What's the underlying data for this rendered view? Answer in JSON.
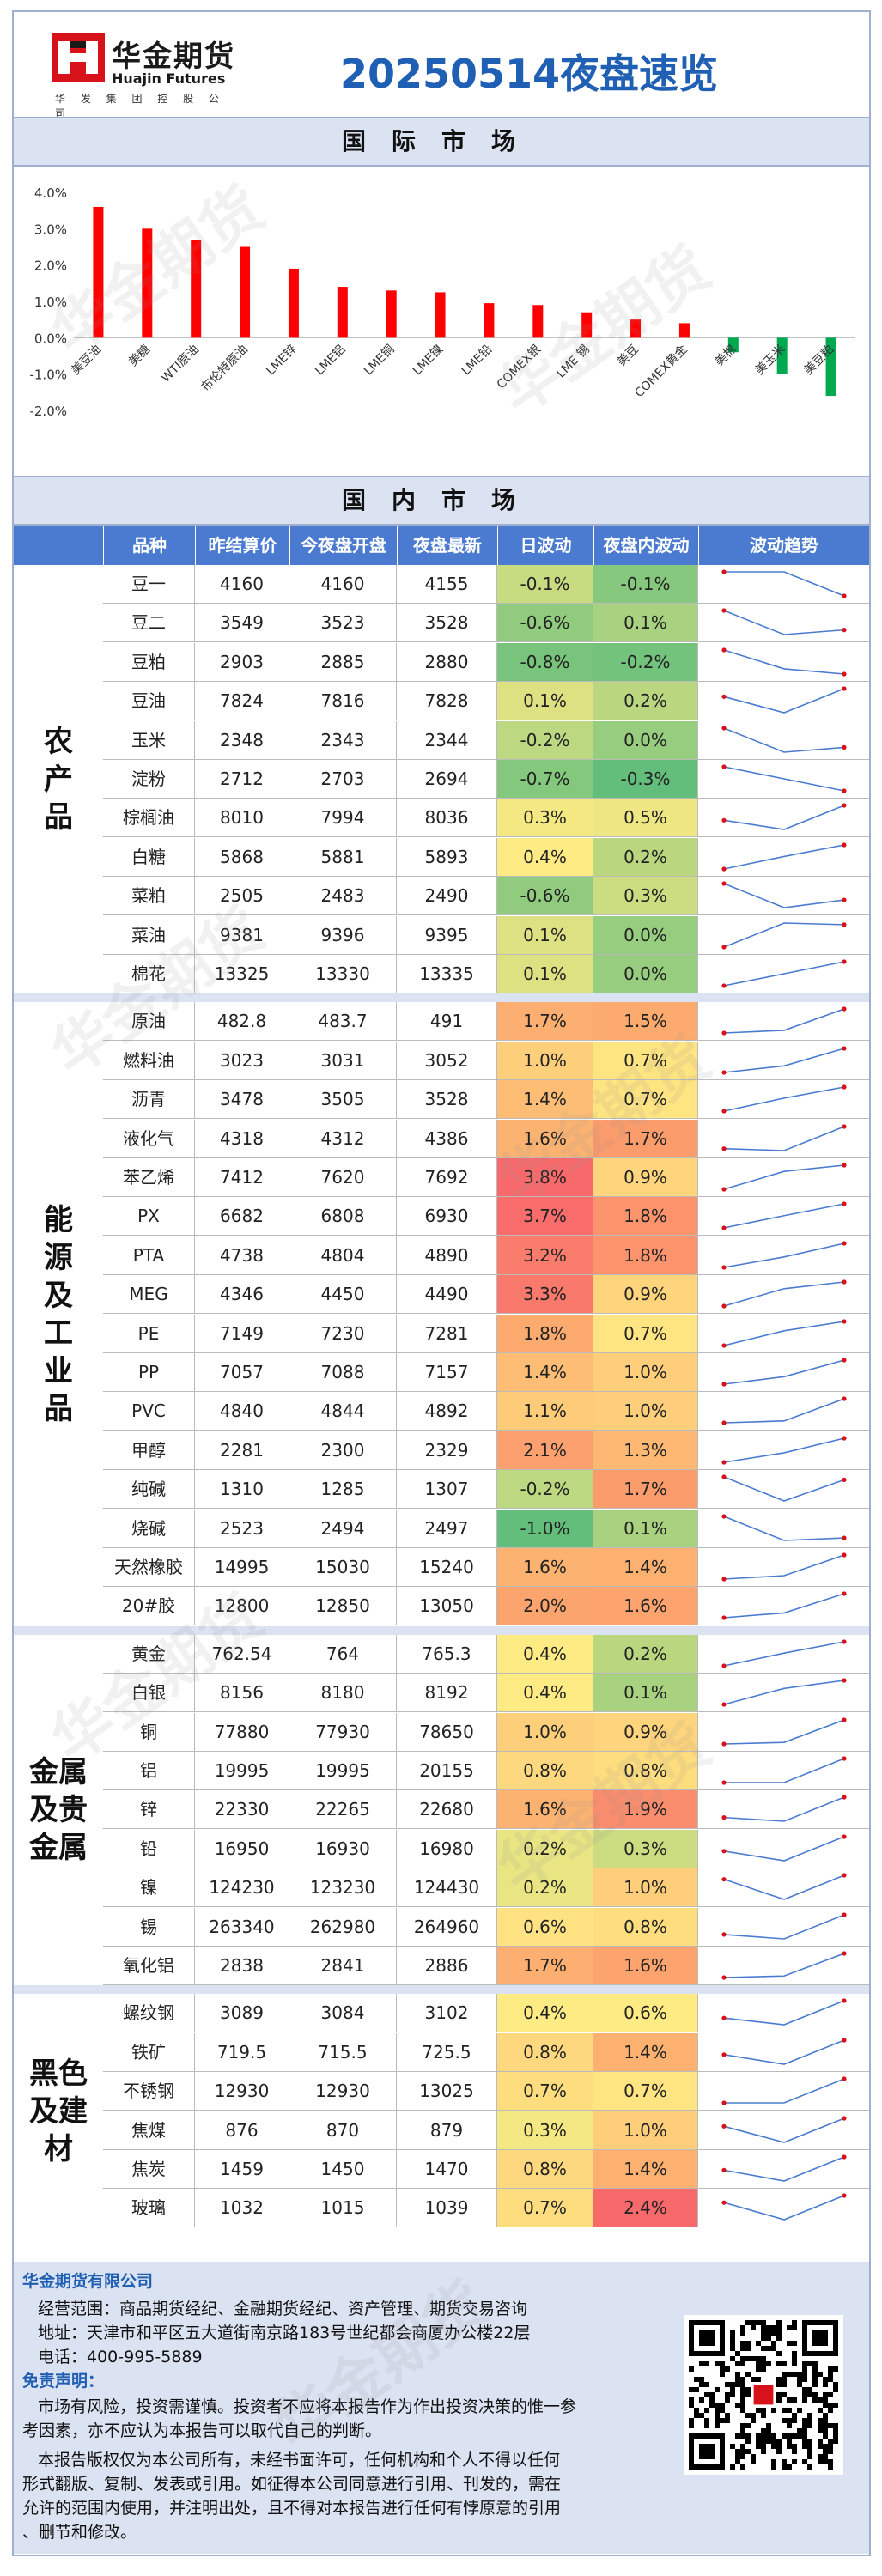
{
  "header": {
    "logo_cn": "华金期货",
    "logo_en": "Huajin Futures",
    "logo_sub": "华 发 集 团 控 股 公 司",
    "title": "20250514夜盘速览"
  },
  "sections": {
    "international": "国际市场",
    "domestic": "国内市场"
  },
  "chart_data": {
    "type": "bar",
    "title": "",
    "categories": [
      "美豆油",
      "美糖",
      "WTI原油",
      "布伦特原油",
      "LME锌",
      "LME铝",
      "LME铜",
      "LME镍",
      "LME铅",
      "COMEX银",
      "LME 锡",
      "美豆",
      "COMEX黄金",
      "美棉",
      "美玉米",
      "美豆粕"
    ],
    "values": [
      3.6,
      3.0,
      2.7,
      2.5,
      1.9,
      1.4,
      1.3,
      1.25,
      0.95,
      0.9,
      0.7,
      0.5,
      0.4,
      -0.4,
      -1.0,
      -1.6
    ],
    "ylim": [
      -2.0,
      4.0
    ],
    "yticks": [
      "4.0%",
      "3.0%",
      "2.0%",
      "1.0%",
      "0.0%",
      "-1.0%",
      "-2.0%"
    ],
    "colors": {
      "positive": "#ff0000",
      "negative": "#00a84f"
    }
  },
  "table": {
    "headers": [
      "品种",
      "昨结算价",
      "今夜盘开盘",
      "夜盘最新",
      "日波动",
      "夜盘内波动",
      "波动趋势"
    ],
    "groups": [
      {
        "label": "农产品",
        "rows": [
          {
            "name": "豆一",
            "prev": "4160",
            "open": "4160",
            "last": "4155",
            "day": "-0.1%",
            "night": "-0.1%",
            "day_v": -0.1,
            "night_v": -0.1,
            "trend": [
              4160,
              4160,
              4155
            ]
          },
          {
            "name": "豆二",
            "prev": "3549",
            "open": "3523",
            "last": "3528",
            "day": "-0.6%",
            "night": "0.1%",
            "day_v": -0.6,
            "night_v": 0.1,
            "trend": [
              3549,
              3523,
              3528
            ]
          },
          {
            "name": "豆粕",
            "prev": "2903",
            "open": "2885",
            "last": "2880",
            "day": "-0.8%",
            "night": "-0.2%",
            "day_v": -0.8,
            "night_v": -0.2,
            "trend": [
              2903,
              2885,
              2880
            ]
          },
          {
            "name": "豆油",
            "prev": "7824",
            "open": "7816",
            "last": "7828",
            "day": "0.1%",
            "night": "0.2%",
            "day_v": 0.1,
            "night_v": 0.2,
            "trend": [
              7824,
              7816,
              7828
            ]
          },
          {
            "name": "玉米",
            "prev": "2348",
            "open": "2343",
            "last": "2344",
            "day": "-0.2%",
            "night": "0.0%",
            "day_v": -0.2,
            "night_v": 0.0,
            "trend": [
              2348,
              2343,
              2344
            ]
          },
          {
            "name": "淀粉",
            "prev": "2712",
            "open": "2703",
            "last": "2694",
            "day": "-0.7%",
            "night": "-0.3%",
            "day_v": -0.7,
            "night_v": -0.3,
            "trend": [
              2712,
              2703,
              2694
            ]
          },
          {
            "name": "棕榈油",
            "prev": "8010",
            "open": "7994",
            "last": "8036",
            "day": "0.3%",
            "night": "0.5%",
            "day_v": 0.3,
            "night_v": 0.5,
            "trend": [
              8010,
              7994,
              8036
            ]
          },
          {
            "name": "白糖",
            "prev": "5868",
            "open": "5881",
            "last": "5893",
            "day": "0.4%",
            "night": "0.2%",
            "day_v": 0.4,
            "night_v": 0.2,
            "trend": [
              5868,
              5881,
              5893
            ]
          },
          {
            "name": "菜粕",
            "prev": "2505",
            "open": "2483",
            "last": "2490",
            "day": "-0.6%",
            "night": "0.3%",
            "day_v": -0.6,
            "night_v": 0.3,
            "trend": [
              2505,
              2483,
              2490
            ]
          },
          {
            "name": "菜油",
            "prev": "9381",
            "open": "9396",
            "last": "9395",
            "day": "0.1%",
            "night": "0.0%",
            "day_v": 0.1,
            "night_v": 0.0,
            "trend": [
              9381,
              9396,
              9395
            ]
          },
          {
            "name": "棉花",
            "prev": "13325",
            "open": "13330",
            "last": "13335",
            "day": "0.1%",
            "night": "0.0%",
            "day_v": 0.1,
            "night_v": 0.0,
            "trend": [
              13325,
              13330,
              13335
            ]
          }
        ]
      },
      {
        "label": "能源及工业品",
        "rows": [
          {
            "name": "原油",
            "prev": "482.8",
            "open": "483.7",
            "last": "491",
            "day": "1.7%",
            "night": "1.5%",
            "day_v": 1.7,
            "night_v": 1.5,
            "trend": [
              482.8,
              483.7,
              491
            ]
          },
          {
            "name": "燃料油",
            "prev": "3023",
            "open": "3031",
            "last": "3052",
            "day": "1.0%",
            "night": "0.7%",
            "day_v": 1.0,
            "night_v": 0.7,
            "trend": [
              3023,
              3031,
              3052
            ]
          },
          {
            "name": "沥青",
            "prev": "3478",
            "open": "3505",
            "last": "3528",
            "day": "1.4%",
            "night": "0.7%",
            "day_v": 1.4,
            "night_v": 0.7,
            "trend": [
              3478,
              3505,
              3528
            ]
          },
          {
            "name": "液化气",
            "prev": "4318",
            "open": "4312",
            "last": "4386",
            "day": "1.6%",
            "night": "1.7%",
            "day_v": 1.6,
            "night_v": 1.7,
            "trend": [
              4318,
              4312,
              4386
            ]
          },
          {
            "name": "苯乙烯",
            "prev": "7412",
            "open": "7620",
            "last": "7692",
            "day": "3.8%",
            "night": "0.9%",
            "day_v": 3.8,
            "night_v": 0.9,
            "trend": [
              7412,
              7620,
              7692
            ]
          },
          {
            "name": "PX",
            "prev": "6682",
            "open": "6808",
            "last": "6930",
            "day": "3.7%",
            "night": "1.8%",
            "day_v": 3.7,
            "night_v": 1.8,
            "trend": [
              6682,
              6808,
              6930
            ]
          },
          {
            "name": "PTA",
            "prev": "4738",
            "open": "4804",
            "last": "4890",
            "day": "3.2%",
            "night": "1.8%",
            "day_v": 3.2,
            "night_v": 1.8,
            "trend": [
              4738,
              4804,
              4890
            ]
          },
          {
            "name": "MEG",
            "prev": "4346",
            "open": "4450",
            "last": "4490",
            "day": "3.3%",
            "night": "0.9%",
            "day_v": 3.3,
            "night_v": 0.9,
            "trend": [
              4346,
              4450,
              4490
            ]
          },
          {
            "name": "PE",
            "prev": "7149",
            "open": "7230",
            "last": "7281",
            "day": "1.8%",
            "night": "0.7%",
            "day_v": 1.8,
            "night_v": 0.7,
            "trend": [
              7149,
              7230,
              7281
            ]
          },
          {
            "name": "PP",
            "prev": "7057",
            "open": "7088",
            "last": "7157",
            "day": "1.4%",
            "night": "1.0%",
            "day_v": 1.4,
            "night_v": 1.0,
            "trend": [
              7057,
              7088,
              7157
            ]
          },
          {
            "name": "PVC",
            "prev": "4840",
            "open": "4844",
            "last": "4892",
            "day": "1.1%",
            "night": "1.0%",
            "day_v": 1.1,
            "night_v": 1.0,
            "trend": [
              4840,
              4844,
              4892
            ]
          },
          {
            "name": "甲醇",
            "prev": "2281",
            "open": "2300",
            "last": "2329",
            "day": "2.1%",
            "night": "1.3%",
            "day_v": 2.1,
            "night_v": 1.3,
            "trend": [
              2281,
              2300,
              2329
            ]
          },
          {
            "name": "纯碱",
            "prev": "1310",
            "open": "1285",
            "last": "1307",
            "day": "-0.2%",
            "night": "1.7%",
            "day_v": -0.2,
            "night_v": 1.7,
            "trend": [
              1310,
              1285,
              1307
            ]
          },
          {
            "name": "烧碱",
            "prev": "2523",
            "open": "2494",
            "last": "2497",
            "day": "-1.0%",
            "night": "0.1%",
            "day_v": -1.0,
            "night_v": 0.1,
            "trend": [
              2523,
              2494,
              2497
            ]
          },
          {
            "name": "天然橡胶",
            "prev": "14995",
            "open": "15030",
            "last": "15240",
            "day": "1.6%",
            "night": "1.4%",
            "day_v": 1.6,
            "night_v": 1.4,
            "trend": [
              14995,
              15030,
              15240
            ]
          },
          {
            "name": "20#胶",
            "prev": "12800",
            "open": "12850",
            "last": "13050",
            "day": "2.0%",
            "night": "1.6%",
            "day_v": 2.0,
            "night_v": 1.6,
            "trend": [
              12800,
              12850,
              13050
            ]
          }
        ]
      },
      {
        "label": "金属及贵金属",
        "rows": [
          {
            "name": "黄金",
            "prev": "762.54",
            "open": "764",
            "last": "765.3",
            "day": "0.4%",
            "night": "0.2%",
            "day_v": 0.4,
            "night_v": 0.2,
            "trend": [
              762.54,
              764,
              765.3
            ]
          },
          {
            "name": "白银",
            "prev": "8156",
            "open": "8180",
            "last": "8192",
            "day": "0.4%",
            "night": "0.1%",
            "day_v": 0.4,
            "night_v": 0.1,
            "trend": [
              8156,
              8180,
              8192
            ]
          },
          {
            "name": "铜",
            "prev": "77880",
            "open": "77930",
            "last": "78650",
            "day": "1.0%",
            "night": "0.9%",
            "day_v": 1.0,
            "night_v": 0.9,
            "trend": [
              77880,
              77930,
              78650
            ]
          },
          {
            "name": "铝",
            "prev": "19995",
            "open": "19995",
            "last": "20155",
            "day": "0.8%",
            "night": "0.8%",
            "day_v": 0.8,
            "night_v": 0.8,
            "trend": [
              19995,
              19995,
              20155
            ]
          },
          {
            "name": "锌",
            "prev": "22330",
            "open": "22265",
            "last": "22680",
            "day": "1.6%",
            "night": "1.9%",
            "day_v": 1.6,
            "night_v": 1.9,
            "trend": [
              22330,
              22265,
              22680
            ]
          },
          {
            "name": "铅",
            "prev": "16950",
            "open": "16930",
            "last": "16980",
            "day": "0.2%",
            "night": "0.3%",
            "day_v": 0.2,
            "night_v": 0.3,
            "trend": [
              16950,
              16930,
              16980
            ]
          },
          {
            "name": "镍",
            "prev": "124230",
            "open": "123230",
            "last": "124430",
            "day": "0.2%",
            "night": "1.0%",
            "day_v": 0.2,
            "night_v": 1.0,
            "trend": [
              124230,
              123230,
              124430
            ]
          },
          {
            "name": "锡",
            "prev": "263340",
            "open": "262980",
            "last": "264960",
            "day": "0.6%",
            "night": "0.8%",
            "day_v": 0.6,
            "night_v": 0.8,
            "trend": [
              263340,
              262980,
              264960
            ]
          },
          {
            "name": "氧化铝",
            "prev": "2838",
            "open": "2841",
            "last": "2886",
            "day": "1.7%",
            "night": "1.6%",
            "day_v": 1.7,
            "night_v": 1.6,
            "trend": [
              2838,
              2841,
              2886
            ]
          }
        ]
      },
      {
        "label": "黑色及建材",
        "rows": [
          {
            "name": "螺纹钢",
            "prev": "3089",
            "open": "3084",
            "last": "3102",
            "day": "0.4%",
            "night": "0.6%",
            "day_v": 0.4,
            "night_v": 0.6,
            "trend": [
              3089,
              3084,
              3102
            ]
          },
          {
            "name": "铁矿",
            "prev": "719.5",
            "open": "715.5",
            "last": "725.5",
            "day": "0.8%",
            "night": "1.4%",
            "day_v": 0.8,
            "night_v": 1.4,
            "trend": [
              719.5,
              715.5,
              725.5
            ]
          },
          {
            "name": "不锈钢",
            "prev": "12930",
            "open": "12930",
            "last": "13025",
            "day": "0.7%",
            "night": "0.7%",
            "day_v": 0.7,
            "night_v": 0.7,
            "trend": [
              12930,
              12930,
              13025
            ]
          },
          {
            "name": "焦煤",
            "prev": "876",
            "open": "870",
            "last": "879",
            "day": "0.3%",
            "night": "1.0%",
            "day_v": 0.3,
            "night_v": 1.0,
            "trend": [
              876,
              870,
              879
            ]
          },
          {
            "name": "焦炭",
            "prev": "1459",
            "open": "1450",
            "last": "1470",
            "day": "0.8%",
            "night": "1.4%",
            "day_v": 0.8,
            "night_v": 1.4,
            "trend": [
              1459,
              1450,
              1470
            ]
          },
          {
            "name": "玻璃",
            "prev": "1032",
            "open": "1015",
            "last": "1039",
            "day": "0.7%",
            "night": "2.4%",
            "day_v": 0.7,
            "night_v": 2.4,
            "trend": [
              1032,
              1015,
              1039
            ]
          }
        ]
      }
    ]
  },
  "footer": {
    "company": "华金期货有限公司",
    "scope": "经营范围：商品期货经纪、金融期货经纪、资产管理、期货交易咨询",
    "address": "地址：天津市和平区五大道街南京路183号世纪都会商厦办公楼22层",
    "phone": "电话：400-995-5889",
    "disclaimer_title": "免责声明：",
    "d1": "市场有风险，投资需谨慎。投资者不应将本报告作为作出投资决策的惟一参",
    "d2": "考因素，亦不应认为本报告可以取代自己的判断。",
    "d3": "本报告版权仅为本公司所有，未经书面许可，任何机构和个人不得以任何",
    "d4": "形式翻版、复制、发表或引用。如征得本公司同意进行引用、刊发的，需在",
    "d5": "允许的范围内使用，并注明出处，且不得对本报告进行任何有悖原意的引用",
    "d6": "、删节和修改。"
  },
  "watermark": "华金期货"
}
